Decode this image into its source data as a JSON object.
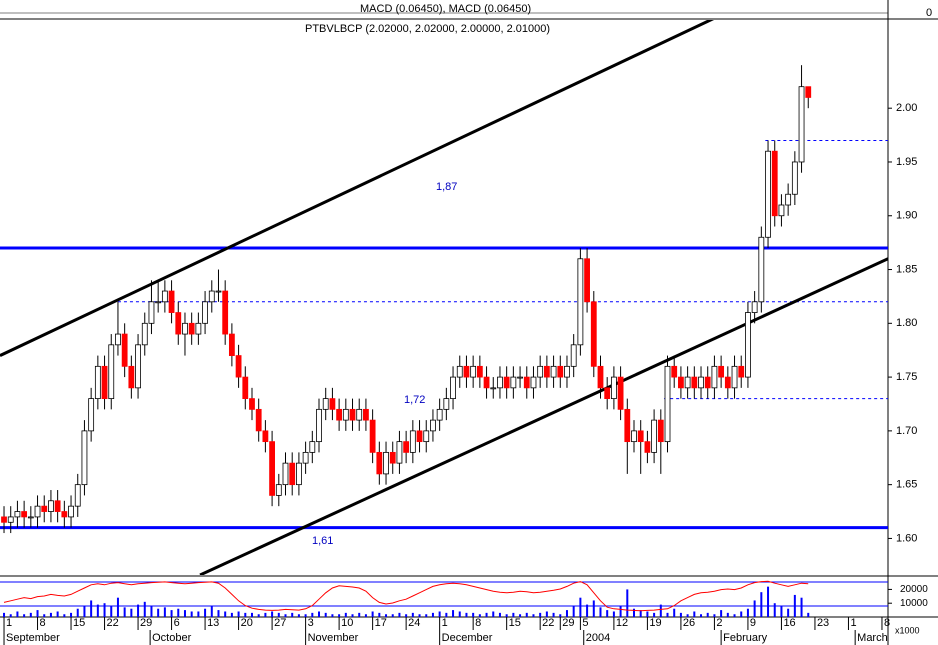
{
  "chart_data": {
    "type": "candlestick",
    "title": "PTBVLBCP (2.02000, 2.02000, 2.00000, 2.01000)",
    "macd_label": "MACD (0.06450), MACD (0.06450)",
    "macd_yticks": [
      0
    ],
    "up_color": "#ffffff",
    "down_color": "#ff0000",
    "xlim": [
      -0.6,
      131.9
    ],
    "ylim": [
      1.566,
      2.082
    ],
    "yticks": [
      {
        "value": 1.6,
        "label": "1.60"
      },
      1.65,
      {
        "value": 1.7,
        "label": "1.70"
      },
      1.75,
      {
        "value": 1.8,
        "label": "1.80"
      },
      1.85,
      {
        "value": 1.9,
        "label": "1.90"
      },
      1.95,
      {
        "value": 2,
        "label": "2.00"
      }
    ],
    "xticks": [
      {
        "value": 0,
        "label": "1"
      },
      {
        "value": 5,
        "label": "8"
      },
      {
        "value": 10,
        "label": "15"
      },
      {
        "value": 15,
        "label": "22"
      },
      {
        "value": 20,
        "label": "29"
      },
      {
        "value": 25,
        "label": "6"
      },
      {
        "value": 30,
        "label": "13"
      },
      {
        "value": 35,
        "label": "20"
      },
      {
        "value": 40,
        "label": "27"
      },
      {
        "value": 45,
        "label": "3"
      },
      {
        "value": 50,
        "label": "10"
      },
      {
        "value": 55,
        "label": "17"
      },
      {
        "value": 60,
        "label": "24"
      },
      {
        "value": 65,
        "label": "1"
      },
      {
        "value": 70,
        "label": "8"
      },
      {
        "value": 75,
        "label": "15"
      },
      {
        "value": 80,
        "label": "22"
      },
      {
        "value": 83,
        "label": "29"
      },
      {
        "value": 86,
        "label": "5"
      },
      {
        "value": 91,
        "label": "12"
      },
      {
        "value": 96,
        "label": "19"
      },
      {
        "value": 101,
        "label": "26"
      },
      {
        "value": 106,
        "label": "2"
      },
      {
        "value": 111,
        "label": "9"
      },
      {
        "value": 116,
        "label": "16"
      },
      {
        "value": 121,
        "label": "23"
      },
      {
        "value": 126,
        "label": "1"
      },
      {
        "value": 131,
        "label": "8"
      }
    ],
    "month_ticks": [
      {
        "value": 0,
        "label": "September"
      },
      {
        "value": 21.8,
        "label": "October"
      },
      {
        "value": 45,
        "label": "November"
      },
      {
        "value": 65,
        "label": "December"
      },
      {
        "value": 86.5,
        "label": "2004"
      },
      {
        "value": 107,
        "label": "February"
      },
      {
        "value": 127,
        "label": "March"
      }
    ],
    "candles": {
      "open": [
        1.62,
        1.615,
        1.62,
        1.625,
        1.62,
        1.62,
        1.63,
        1.625,
        1.635,
        1.625,
        1.62,
        1.63,
        1.65,
        1.7,
        1.73,
        1.76,
        1.73,
        1.78,
        1.79,
        1.76,
        1.74,
        1.78,
        1.8,
        1.82,
        1.82,
        1.83,
        1.81,
        1.79,
        1.8,
        1.79,
        1.8,
        1.82,
        1.83,
        1.83,
        1.79,
        1.77,
        1.75,
        1.73,
        1.72,
        1.7,
        1.69,
        1.64,
        1.65,
        1.67,
        1.65,
        1.67,
        1.68,
        1.69,
        1.72,
        1.73,
        1.72,
        1.71,
        1.72,
        1.71,
        1.72,
        1.71,
        1.68,
        1.66,
        1.68,
        1.67,
        1.69,
        1.68,
        1.7,
        1.69,
        1.7,
        1.71,
        1.72,
        1.73,
        1.75,
        1.76,
        1.75,
        1.76,
        1.75,
        1.74,
        1.74,
        1.75,
        1.74,
        1.75,
        1.75,
        1.74,
        1.75,
        1.76,
        1.75,
        1.76,
        1.75,
        1.76,
        1.78,
        1.86,
        1.82,
        1.76,
        1.74,
        1.73,
        1.75,
        1.72,
        1.69,
        1.7,
        1.69,
        1.68,
        1.71,
        1.69,
        1.76,
        1.75,
        1.74,
        1.75,
        1.74,
        1.75,
        1.74,
        1.76,
        1.75,
        1.74,
        1.76,
        1.75,
        1.81,
        1.82,
        1.88,
        1.96,
        1.9,
        1.91,
        1.92,
        1.95,
        2.02
      ],
      "high": [
        1.63,
        1.63,
        1.635,
        1.635,
        1.63,
        1.64,
        1.64,
        1.645,
        1.645,
        1.635,
        1.64,
        1.66,
        1.71,
        1.74,
        1.77,
        1.77,
        1.79,
        1.82,
        1.8,
        1.77,
        1.79,
        1.81,
        1.84,
        1.84,
        1.84,
        1.84,
        1.82,
        1.81,
        1.81,
        1.81,
        1.83,
        1.84,
        1.85,
        1.84,
        1.8,
        1.78,
        1.76,
        1.74,
        1.73,
        1.71,
        1.7,
        1.66,
        1.68,
        1.68,
        1.68,
        1.69,
        1.7,
        1.73,
        1.74,
        1.74,
        1.73,
        1.73,
        1.73,
        1.73,
        1.73,
        1.72,
        1.69,
        1.69,
        1.69,
        1.7,
        1.7,
        1.71,
        1.71,
        1.71,
        1.72,
        1.73,
        1.74,
        1.76,
        1.77,
        1.77,
        1.77,
        1.77,
        1.76,
        1.75,
        1.76,
        1.76,
        1.76,
        1.76,
        1.76,
        1.76,
        1.77,
        1.77,
        1.77,
        1.77,
        1.77,
        1.79,
        1.87,
        1.87,
        1.83,
        1.77,
        1.75,
        1.76,
        1.76,
        1.73,
        1.71,
        1.71,
        1.7,
        1.72,
        1.72,
        1.77,
        1.77,
        1.76,
        1.76,
        1.76,
        1.76,
        1.76,
        1.77,
        1.77,
        1.76,
        1.77,
        1.77,
        1.82,
        1.83,
        1.89,
        1.97,
        1.97,
        1.92,
        1.93,
        1.96,
        2.04,
        2.02
      ],
      "low": [
        1.605,
        1.605,
        1.61,
        1.61,
        1.61,
        1.61,
        1.615,
        1.615,
        1.615,
        1.61,
        1.61,
        1.62,
        1.64,
        1.69,
        1.72,
        1.72,
        1.72,
        1.77,
        1.75,
        1.73,
        1.73,
        1.77,
        1.79,
        1.81,
        1.81,
        1.8,
        1.78,
        1.77,
        1.78,
        1.78,
        1.79,
        1.81,
        1.82,
        1.78,
        1.76,
        1.74,
        1.72,
        1.71,
        1.69,
        1.68,
        1.63,
        1.63,
        1.64,
        1.64,
        1.64,
        1.66,
        1.67,
        1.68,
        1.71,
        1.71,
        1.7,
        1.7,
        1.7,
        1.7,
        1.7,
        1.67,
        1.65,
        1.65,
        1.66,
        1.66,
        1.67,
        1.67,
        1.68,
        1.68,
        1.69,
        1.7,
        1.71,
        1.72,
        1.74,
        1.74,
        1.74,
        1.74,
        1.73,
        1.73,
        1.73,
        1.73,
        1.73,
        1.74,
        1.73,
        1.73,
        1.74,
        1.74,
        1.74,
        1.74,
        1.74,
        1.75,
        1.77,
        1.81,
        1.75,
        1.73,
        1.72,
        1.72,
        1.71,
        1.66,
        1.68,
        1.66,
        1.67,
        1.67,
        1.66,
        1.68,
        1.74,
        1.73,
        1.73,
        1.73,
        1.73,
        1.73,
        1.73,
        1.74,
        1.73,
        1.73,
        1.74,
        1.74,
        1.8,
        1.81,
        1.87,
        1.89,
        1.89,
        1.9,
        1.91,
        1.94,
        2.0
      ],
      "close": [
        1.615,
        1.62,
        1.625,
        1.62,
        1.62,
        1.63,
        1.625,
        1.635,
        1.625,
        1.62,
        1.63,
        1.65,
        1.7,
        1.73,
        1.76,
        1.73,
        1.78,
        1.79,
        1.76,
        1.74,
        1.78,
        1.8,
        1.82,
        1.82,
        1.83,
        1.81,
        1.79,
        1.8,
        1.79,
        1.8,
        1.82,
        1.83,
        1.83,
        1.79,
        1.77,
        1.75,
        1.73,
        1.72,
        1.7,
        1.69,
        1.64,
        1.65,
        1.67,
        1.65,
        1.67,
        1.68,
        1.69,
        1.72,
        1.73,
        1.72,
        1.71,
        1.72,
        1.71,
        1.72,
        1.71,
        1.68,
        1.66,
        1.68,
        1.67,
        1.69,
        1.68,
        1.7,
        1.69,
        1.7,
        1.71,
        1.72,
        1.73,
        1.75,
        1.76,
        1.75,
        1.76,
        1.75,
        1.74,
        1.74,
        1.75,
        1.74,
        1.75,
        1.75,
        1.74,
        1.75,
        1.76,
        1.75,
        1.76,
        1.75,
        1.76,
        1.78,
        1.86,
        1.82,
        1.76,
        1.74,
        1.73,
        1.75,
        1.72,
        1.69,
        1.7,
        1.69,
        1.68,
        1.71,
        1.69,
        1.76,
        1.75,
        1.74,
        1.75,
        1.74,
        1.75,
        1.74,
        1.76,
        1.75,
        1.74,
        1.76,
        1.75,
        1.81,
        1.82,
        1.88,
        1.96,
        1.9,
        1.91,
        1.92,
        1.95,
        2.02,
        2.01
      ]
    },
    "levels": [
      {
        "value": 1.87,
        "color": "#0000ff",
        "style": "solid",
        "from": -0.6
      },
      {
        "value": 1.61,
        "color": "#0000ff",
        "style": "solid",
        "from": -0.6
      },
      {
        "value": 1.82,
        "color": "#0000ff",
        "style": "dashed",
        "from": 17
      },
      {
        "value": 1.73,
        "color": "#0000ff",
        "style": "dashed",
        "from": 98.5
      },
      {
        "value": 1.97,
        "color": "#0000ff",
        "style": "dashed",
        "from": 113.6
      }
    ],
    "trendlines": [
      {
        "x": [
          -0.6,
          106.1
        ],
        "y": [
          1.77,
          2.084
        ],
        "color": "#000000"
      },
      {
        "x": [
          29.25,
          131.9
        ],
        "y": [
          1.566,
          1.86
        ],
        "color": "#000000"
      }
    ],
    "annotations": [
      "1,87",
      "1,72",
      "1,61"
    ],
    "volume": {
      "color": "#0000ff",
      "lim": [
        0,
        29000
      ],
      "ticks": [
        20000,
        10000
      ],
      "unit": "x1000",
      "values": [
        3000,
        2000,
        4000,
        2000,
        3000,
        5000,
        2000,
        3000,
        4000,
        2000,
        3000,
        6000,
        8000,
        12000,
        9000,
        10000,
        8000,
        14000,
        7000,
        6000,
        9000,
        11000,
        8000,
        6000,
        7000,
        5000,
        6000,
        5000,
        4000,
        4000,
        6000,
        8000,
        5000,
        4000,
        3000,
        4000,
        3000,
        3000,
        2000,
        3000,
        4000,
        3000,
        2000,
        3000,
        2000,
        2000,
        3000,
        4000,
        3000,
        2000,
        2000,
        3000,
        2000,
        3000,
        2000,
        4000,
        3000,
        2000,
        2000,
        3000,
        2000,
        3000,
        2000,
        2000,
        3000,
        4000,
        3000,
        5000,
        4000,
        3000,
        3000,
        2000,
        3000,
        4000,
        3000,
        2000,
        3000,
        2000,
        3000,
        2000,
        3000,
        4000,
        3000,
        2000,
        5000,
        8000,
        14000,
        9000,
        12000,
        7000,
        5000,
        4000,
        8000,
        20000,
        6000,
        5000,
        4000,
        3000,
        9000,
        3000,
        6000,
        3000,
        2000,
        4000,
        2000,
        3000,
        2000,
        5000,
        3000,
        2000,
        4000,
        6000,
        12000,
        18000,
        22000,
        10000,
        8000,
        6000,
        16000,
        14000,
        3000
      ]
    },
    "oscillator": {
      "color": "#ff0000",
      "lim": [
        0,
        100
      ],
      "values": [
        30,
        35,
        40,
        45,
        42,
        48,
        50,
        55,
        52,
        50,
        55,
        65,
        75,
        85,
        88,
        85,
        90,
        92,
        88,
        85,
        88,
        90,
        92,
        93,
        94,
        92,
        90,
        88,
        90,
        92,
        93,
        94,
        90,
        75,
        55,
        35,
        20,
        12,
        8,
        6,
        5,
        6,
        8,
        7,
        6,
        10,
        20,
        40,
        60,
        75,
        82,
        80,
        78,
        75,
        65,
        45,
        30,
        25,
        28,
        35,
        40,
        50,
        60,
        70,
        80,
        85,
        88,
        90,
        88,
        85,
        80,
        75,
        70,
        65,
        62,
        60,
        62,
        65,
        63,
        60,
        62,
        65,
        68,
        72,
        80,
        90,
        95,
        85,
        60,
        35,
        15,
        10,
        8,
        6,
        5,
        4,
        5,
        6,
        8,
        10,
        20,
        35,
        45,
        55,
        60,
        62,
        65,
        70,
        72,
        70,
        75,
        85,
        92,
        95,
        96,
        90,
        85,
        80,
        85,
        90,
        88
      ]
    }
  }
}
